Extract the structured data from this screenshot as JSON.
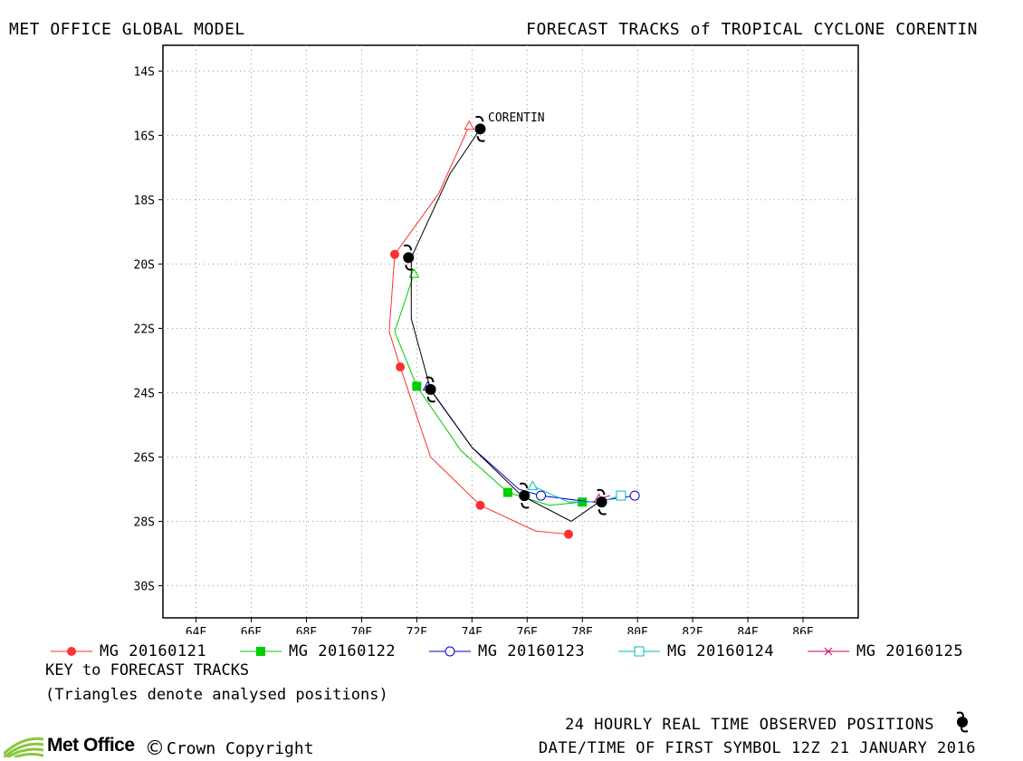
{
  "header": {
    "left_title": "MET OFFICE GLOBAL MODEL",
    "right_title": "FORECAST TRACKS of TROPICAL CYCLONE CORENTIN"
  },
  "map": {
    "lon_ticks": [
      "64E",
      "66E",
      "68E",
      "70E",
      "72E",
      "74E",
      "76E",
      "78E",
      "80E",
      "82E",
      "84E",
      "86E"
    ],
    "lat_ticks": [
      "14S",
      "16S",
      "18S",
      "20S",
      "22S",
      "24S",
      "26S",
      "28S",
      "30S"
    ],
    "lon_range": [
      62.8,
      88.0
    ],
    "lat_range": [
      -13.2,
      -31.0
    ],
    "grid": true,
    "storm_label": "CORENTIN"
  },
  "observed_track": {
    "color": "#000000",
    "points": [
      [
        74.3,
        -15.8
      ],
      [
        73.2,
        -17.2
      ],
      [
        71.8,
        -19.8
      ],
      [
        71.8,
        -21.7
      ],
      [
        72.5,
        -23.9
      ],
      [
        74.0,
        -25.7
      ],
      [
        75.8,
        -27.2
      ],
      [
        77.6,
        -28.0
      ],
      [
        78.6,
        -27.4
      ]
    ],
    "symbol_points": [
      [
        74.3,
        -15.8
      ],
      [
        71.7,
        -19.8
      ],
      [
        72.5,
        -23.9
      ],
      [
        75.9,
        -27.2
      ],
      [
        78.7,
        -27.4
      ]
    ]
  },
  "forecast_tracks": [
    {
      "name": "MG 20160121",
      "color": "#ff3030",
      "marker": "filled-circle",
      "analysed": [
        73.9,
        -15.7
      ],
      "points": [
        [
          73.9,
          -15.7
        ],
        [
          72.8,
          -17.8
        ],
        [
          71.2,
          -19.7
        ],
        [
          71.0,
          -22.1
        ],
        [
          71.4,
          -23.2
        ],
        [
          72.5,
          -26.0
        ],
        [
          74.3,
          -27.5
        ],
        [
          76.3,
          -28.3
        ],
        [
          77.5,
          -28.4
        ]
      ],
      "marker_points": [
        [
          71.2,
          -19.7
        ],
        [
          71.4,
          -23.2
        ],
        [
          74.3,
          -27.5
        ],
        [
          77.5,
          -28.4
        ]
      ]
    },
    {
      "name": "MG 20160122",
      "color": "#00cc00",
      "marker": "filled-square",
      "analysed": [
        71.9,
        -20.3
      ],
      "points": [
        [
          71.9,
          -20.3
        ],
        [
          71.2,
          -22.1
        ],
        [
          72.0,
          -23.8
        ],
        [
          73.6,
          -25.8
        ],
        [
          75.3,
          -27.1
        ],
        [
          76.8,
          -27.5
        ],
        [
          78.0,
          -27.4
        ]
      ],
      "marker_points": [
        [
          72.0,
          -23.8
        ],
        [
          75.3,
          -27.1
        ],
        [
          78.0,
          -27.4
        ]
      ]
    },
    {
      "name": "MG 20160123",
      "color": "#0000cc",
      "marker": "open-circle",
      "analysed": [
        72.4,
        -23.8
      ],
      "points": [
        [
          72.4,
          -23.8
        ],
        [
          74.0,
          -25.7
        ],
        [
          75.7,
          -27.0
        ],
        [
          76.5,
          -27.2
        ],
        [
          78.3,
          -27.4
        ],
        [
          79.9,
          -27.2
        ]
      ],
      "marker_points": [
        [
          76.5,
          -27.2
        ],
        [
          79.9,
          -27.2
        ]
      ]
    },
    {
      "name": "MG 20160124",
      "color": "#00bbbb",
      "marker": "open-square",
      "analysed": [
        76.2,
        -26.9
      ],
      "points": [
        [
          76.2,
          -26.9
        ],
        [
          77.5,
          -27.4
        ],
        [
          78.6,
          -27.4
        ],
        [
          79.4,
          -27.2
        ]
      ],
      "marker_points": [
        [
          79.4,
          -27.2
        ]
      ]
    },
    {
      "name": "MG 20160125",
      "color": "#cc0066",
      "marker": "cross",
      "analysed": [
        78.6,
        -27.3
      ],
      "points": [
        [
          78.6,
          -27.3
        ],
        [
          79.0,
          -27.2
        ]
      ],
      "marker_points": []
    }
  ],
  "key": {
    "title": "KEY to FORECAST TRACKS",
    "subtitle": "(Triangles denote analysed positions)"
  },
  "footer": {
    "observed_note": "24 HOURLY REAL TIME OBSERVED POSITIONS",
    "datetime_note": "DATE/TIME OF FIRST SYMBOL 12Z 21 JANUARY 2016",
    "logo_text": "Met Office",
    "copyright_symbol": "©",
    "copyright_text": "Crown Copyright"
  },
  "icons": [
    "cyclone-symbol-icon",
    "met-office-logo-icon"
  ]
}
